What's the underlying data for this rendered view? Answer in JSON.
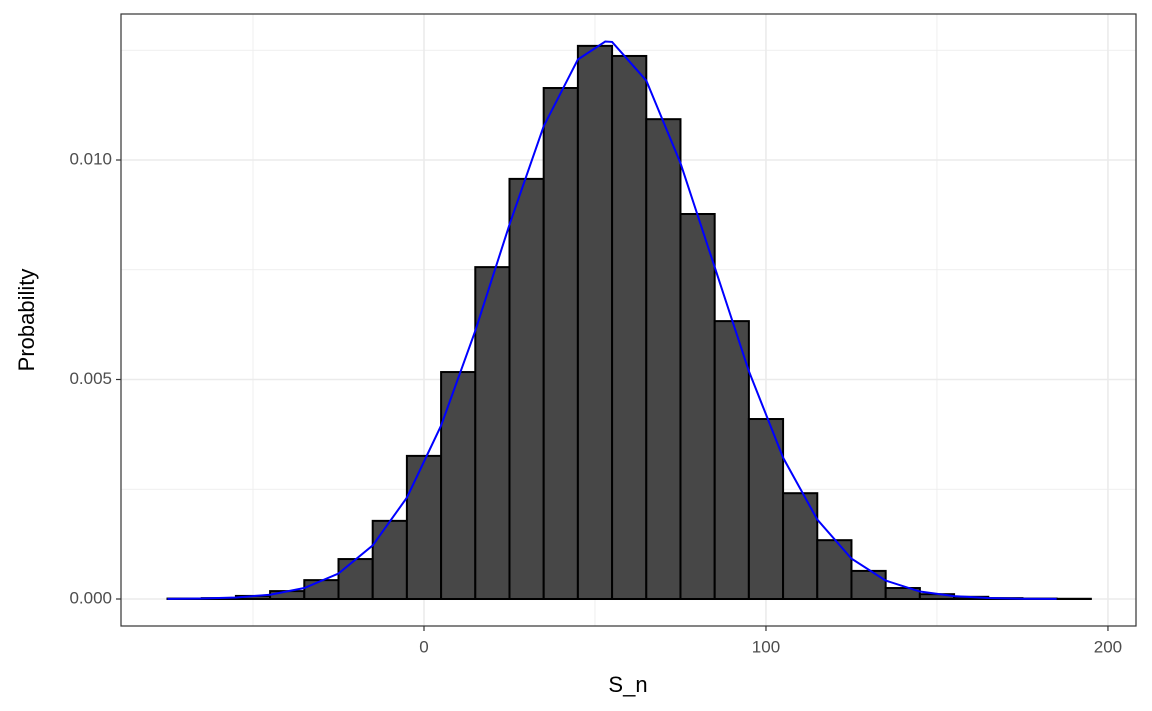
{
  "chart_data": {
    "type": "histogram",
    "x_label": "S_n",
    "y_label": "Probability",
    "bins": [
      -75,
      -65,
      -55,
      -45,
      -35,
      -25,
      -15,
      -5,
      5,
      15,
      25,
      35,
      45,
      55,
      65,
      75,
      85,
      95,
      105,
      115,
      125,
      135,
      145,
      155,
      165,
      175,
      185,
      195
    ],
    "values": [
      1e-05,
      2e-05,
      7e-05,
      0.00018,
      0.00043,
      0.00091,
      0.00178,
      0.00326,
      0.00517,
      0.00756,
      0.00957,
      0.01164,
      0.0126,
      0.01237,
      0.01093,
      0.00877,
      0.00633,
      0.0041,
      0.00241,
      0.00134,
      0.00064,
      0.00025,
      0.00011,
      5e-05,
      2e-05,
      1e-05,
      5e-06
    ],
    "color": "#474747",
    "edge_color": "#000000",
    "density": {
      "color": "#0000ff",
      "x": [
        -75,
        -65,
        -55,
        -45,
        -35,
        -25,
        -15,
        -5,
        5,
        15,
        25,
        35,
        45,
        53,
        55,
        65,
        75,
        85,
        95,
        105,
        115,
        125,
        135,
        145,
        155,
        165,
        175,
        185
      ],
      "y": [
        3.1e-06,
        1.09e-05,
        3.43e-05,
        9.74e-05,
        0.00025,
        0.00058,
        0.00122,
        0.00231,
        0.00395,
        0.00611,
        0.00853,
        0.01077,
        0.01229,
        0.0127,
        0.01269,
        0.01181,
        0.00993,
        0.00756,
        0.00519,
        0.00322,
        0.00181,
        0.00092,
        0.00042,
        0.00017,
        6.5e-05,
        2.2e-05,
        6.7e-06,
        1.8e-06
      ]
    },
    "xlim": [
      -88.6,
      208.2
    ],
    "ylim": [
      -0.000615,
      0.013326
    ],
    "xticks": [
      0,
      100,
      200
    ],
    "yticks": [
      {
        "value": 0,
        "label": "0.000"
      },
      {
        "value": 0.005,
        "label": "0.005"
      },
      {
        "value": 0.01,
        "label": "0.010"
      }
    ],
    "grid": true,
    "minor_grid": true
  }
}
